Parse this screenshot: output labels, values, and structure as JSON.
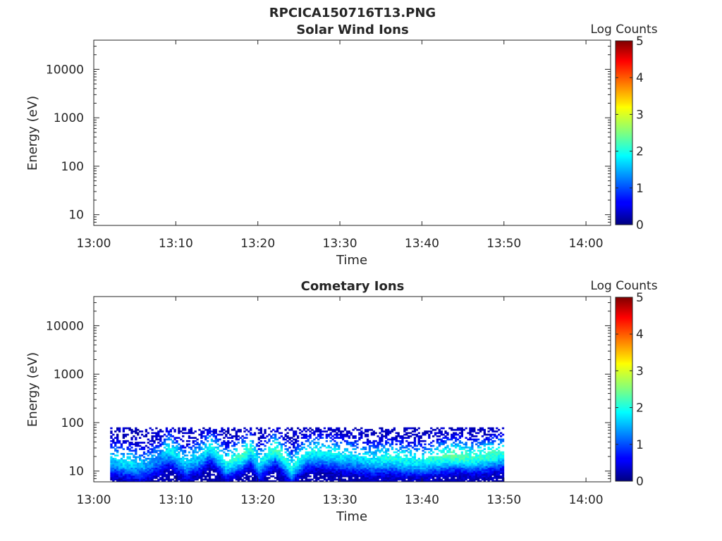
{
  "figure_title": "RPCICA150716T13.PNG",
  "chart_data": [
    {
      "type": "heatmap",
      "title": "Solar Wind Ions",
      "xlabel": "Time",
      "ylabel": "Energy (eV)",
      "x_ticks": [
        "13:00",
        "13:10",
        "13:20",
        "13:30",
        "13:40",
        "13:50",
        "14:00"
      ],
      "y_ticks": [
        "10",
        "100",
        "1000",
        "10000"
      ],
      "y_scale": "log",
      "xlim": [
        "13:00",
        "14:03"
      ],
      "ylim": [
        6,
        40000
      ],
      "colorbar": {
        "label": "Log Counts",
        "ticks": [
          "0",
          "1",
          "2",
          "3",
          "4",
          "5"
        ],
        "range": [
          0,
          5
        ],
        "colormap": "jet"
      },
      "data": []
    },
    {
      "type": "heatmap",
      "title": "Cometary Ions",
      "xlabel": "Time",
      "ylabel": "Energy (eV)",
      "x_ticks": [
        "13:00",
        "13:10",
        "13:20",
        "13:30",
        "13:40",
        "13:50",
        "14:00"
      ],
      "y_ticks": [
        "10",
        "100",
        "1000",
        "10000"
      ],
      "y_scale": "log",
      "xlim": [
        "13:00",
        "14:03"
      ],
      "ylim": [
        6,
        40000
      ],
      "colorbar": {
        "label": "Log Counts",
        "ticks": [
          "0",
          "1",
          "2",
          "3",
          "4",
          "5"
        ],
        "range": [
          0,
          5
        ],
        "colormap": "jet"
      },
      "data_summary": {
        "time_range": [
          "13:02",
          "13:50"
        ],
        "energy_range_eV": [
          6,
          80
        ],
        "peak_energy_eV": 20,
        "peak_log_counts": 2.6,
        "band_centers": [
          {
            "t": "13:02",
            "e": 18,
            "v": 1.6
          },
          {
            "t": "13:04",
            "e": 16,
            "v": 1.8
          },
          {
            "t": "13:06",
            "e": 14,
            "v": 1.5
          },
          {
            "t": "13:08",
            "e": 20,
            "v": 1.3
          },
          {
            "t": "13:09",
            "e": 30,
            "v": 1.9
          },
          {
            "t": "13:11",
            "e": 15,
            "v": 1.6
          },
          {
            "t": "13:13",
            "e": 22,
            "v": 1.7
          },
          {
            "t": "13:14",
            "e": 32,
            "v": 1.8
          },
          {
            "t": "13:16",
            "e": 15,
            "v": 1.9
          },
          {
            "t": "13:18",
            "e": 22,
            "v": 2.2
          },
          {
            "t": "13:19",
            "e": 30,
            "v": 2.0
          },
          {
            "t": "13:20",
            "e": 14,
            "v": 1.7
          },
          {
            "t": "13:22",
            "e": 30,
            "v": 2.2
          },
          {
            "t": "13:23",
            "e": 20,
            "v": 2.0
          },
          {
            "t": "13:24",
            "e": 12,
            "v": 1.9
          },
          {
            "t": "13:26",
            "e": 25,
            "v": 1.9
          },
          {
            "t": "13:28",
            "e": 25,
            "v": 1.9
          },
          {
            "t": "13:30",
            "e": 22,
            "v": 1.8
          },
          {
            "t": "13:32",
            "e": 20,
            "v": 1.7
          },
          {
            "t": "13:34",
            "e": 18,
            "v": 1.8
          },
          {
            "t": "13:36",
            "e": 20,
            "v": 2.0
          },
          {
            "t": "13:38",
            "e": 18,
            "v": 1.9
          },
          {
            "t": "13:40",
            "e": 17,
            "v": 1.9
          },
          {
            "t": "13:42",
            "e": 20,
            "v": 2.1
          },
          {
            "t": "13:44",
            "e": 22,
            "v": 2.3
          },
          {
            "t": "13:46",
            "e": 20,
            "v": 2.1
          },
          {
            "t": "13:48",
            "e": 22,
            "v": 2.2
          },
          {
            "t": "13:50",
            "e": 25,
            "v": 2.0
          }
        ]
      }
    }
  ]
}
